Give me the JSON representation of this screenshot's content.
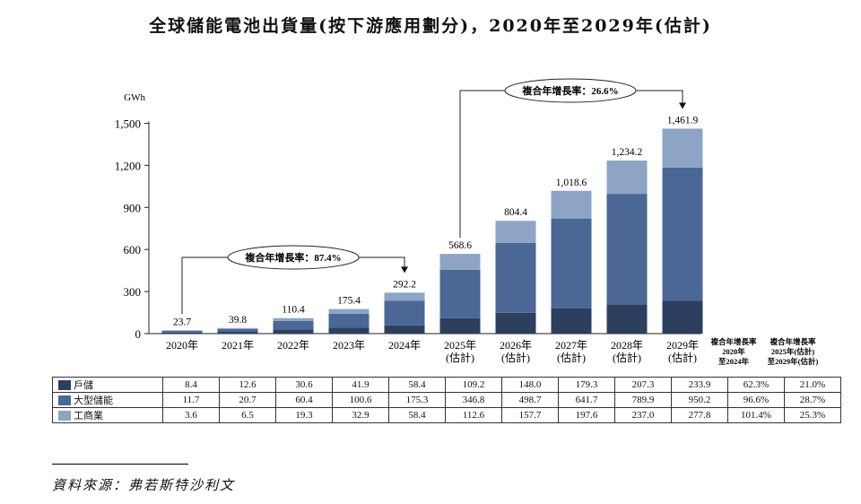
{
  "chart_data": {
    "type": "bar",
    "stacked": true,
    "title": "全球儲能電池出貨量(按下游應用劃分)，2020年至2029年(估計)",
    "unit": "GWh",
    "ylim": [
      0,
      1500
    ],
    "yticks": [
      0,
      300,
      600,
      900,
      "1,200",
      "1,500"
    ],
    "ytick_values": [
      0,
      300,
      600,
      900,
      1200,
      1500
    ],
    "categories": [
      "2020年",
      "2021年",
      "2022年",
      "2023年",
      "2024年",
      "2025年(估計)",
      "2026年(估計)",
      "2027年(估計)",
      "2028年(估計)",
      "2029年(估計)"
    ],
    "category_lines": [
      [
        "2020年"
      ],
      [
        "2021年"
      ],
      [
        "2022年"
      ],
      [
        "2023年"
      ],
      [
        "2024年"
      ],
      [
        "2025年",
        "(估計)"
      ],
      [
        "2026年",
        "(估計)"
      ],
      [
        "2027年",
        "(估計)"
      ],
      [
        "2028年",
        "(估計)"
      ],
      [
        "2029年",
        "(估計)"
      ]
    ],
    "series": [
      {
        "name": "戶儲",
        "color": "#2d3f5f",
        "values": [
          8.4,
          12.6,
          30.6,
          41.9,
          58.4,
          109.2,
          148.0,
          179.3,
          207.3,
          233.9
        ]
      },
      {
        "name": "大型儲能",
        "color": "#4a6796",
        "values": [
          11.7,
          20.7,
          60.4,
          100.6,
          175.3,
          346.8,
          498.7,
          641.7,
          789.9,
          950.2
        ]
      },
      {
        "name": "工商業",
        "color": "#8da4c5",
        "values": [
          3.6,
          6.5,
          19.3,
          32.9,
          58.4,
          112.6,
          157.7,
          197.6,
          237.0,
          277.8
        ]
      }
    ],
    "totals": [
      23.7,
      39.8,
      110.4,
      175.4,
      292.2,
      568.6,
      804.4,
      1018.6,
      1234.2,
      1461.9
    ],
    "total_labels": [
      "23.7",
      "39.8",
      "110.4",
      "175.4",
      "292.2",
      "568.6",
      "804.4",
      "1,018.6",
      "1,234.2",
      "1,461.9"
    ],
    "series_value_labels": [
      [
        "8.4",
        "12.6",
        "30.6",
        "41.9",
        "58.4",
        "109.2",
        "148.0",
        "179.3",
        "207.3",
        "233.9"
      ],
      [
        "11.7",
        "20.7",
        "60.4",
        "100.6",
        "175.3",
        "346.8",
        "498.7",
        "641.7",
        "789.9",
        "950.2"
      ],
      [
        "3.6",
        "6.5",
        "19.3",
        "32.9",
        "58.4",
        "112.6",
        "157.7",
        "197.6",
        "237.0",
        "277.8"
      ]
    ],
    "cagr_headers": [
      [
        "複合年增長率",
        "2020年",
        "至2024年"
      ],
      [
        "複合年增長率",
        "2025年(估計)",
        "至2029年(估計)"
      ]
    ],
    "cagr_values": [
      [
        "62.3%",
        "21.0%"
      ],
      [
        "96.6%",
        "28.7%"
      ],
      [
        "101.4%",
        "25.3%"
      ]
    ],
    "annotations": [
      {
        "text": "複合年增長率：87.4%",
        "from_index": 0,
        "to_index": 4
      },
      {
        "text": "複合年增長率：26.6%",
        "from_index": 5,
        "to_index": 9
      }
    ],
    "legend": "table-below",
    "grid": false
  },
  "source": "資料來源：弗若斯特沙利文"
}
